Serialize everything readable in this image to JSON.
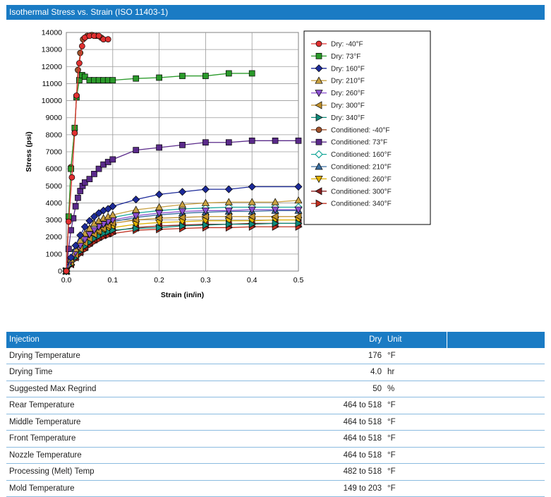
{
  "header": {
    "title": "Isothermal Stress vs. Strain (ISO 11403-1)"
  },
  "chart_data": {
    "type": "line",
    "xlabel": "Strain (in/in)",
    "ylabel": "Stress (psi)",
    "xlim": [
      0,
      0.5
    ],
    "ylim": [
      0,
      14000
    ],
    "xticks": [
      "0.0",
      "0.1",
      "0.2",
      "0.3",
      "0.4",
      "0.5"
    ],
    "yticks": [
      "0",
      "1000",
      "2000",
      "3000",
      "4000",
      "5000",
      "6000",
      "7000",
      "8000",
      "9000",
      "10000",
      "11000",
      "12000",
      "13000",
      "14000"
    ],
    "grid": true,
    "legend_position": "right",
    "series": [
      {
        "name": "Dry: -40°F",
        "color": "#e03030",
        "marker": "circle",
        "points": [
          [
            0,
            0
          ],
          [
            0.005,
            2900
          ],
          [
            0.012,
            5500
          ],
          [
            0.018,
            8100
          ],
          [
            0.022,
            10300
          ],
          [
            0.028,
            12200
          ],
          [
            0.034,
            13200
          ],
          [
            0.04,
            13700
          ],
          [
            0.05,
            13800
          ],
          [
            0.06,
            13800
          ],
          [
            0.07,
            13800
          ],
          [
            0.08,
            13600
          ],
          [
            0.09,
            13600
          ]
        ]
      },
      {
        "name": "Dry: 73°F",
        "color": "#2a9a2a",
        "marker": "square",
        "points": [
          [
            0,
            0
          ],
          [
            0.005,
            3200
          ],
          [
            0.01,
            6000
          ],
          [
            0.018,
            8400
          ],
          [
            0.022,
            10200
          ],
          [
            0.028,
            11200
          ],
          [
            0.034,
            11500
          ],
          [
            0.04,
            11400
          ],
          [
            0.05,
            11200
          ],
          [
            0.06,
            11200
          ],
          [
            0.07,
            11200
          ],
          [
            0.08,
            11200
          ],
          [
            0.09,
            11200
          ],
          [
            0.1,
            11200
          ],
          [
            0.15,
            11300
          ],
          [
            0.2,
            11350
          ],
          [
            0.25,
            11450
          ],
          [
            0.3,
            11450
          ],
          [
            0.35,
            11600
          ],
          [
            0.4,
            11600
          ]
        ]
      },
      {
        "name": "Dry: 160°F",
        "color": "#1c2a99",
        "marker": "diamond",
        "points": [
          [
            0,
            0
          ],
          [
            0.01,
            800
          ],
          [
            0.02,
            1500
          ],
          [
            0.03,
            2100
          ],
          [
            0.04,
            2600
          ],
          [
            0.05,
            2950
          ],
          [
            0.06,
            3200
          ],
          [
            0.07,
            3400
          ],
          [
            0.08,
            3550
          ],
          [
            0.09,
            3650
          ],
          [
            0.1,
            3800
          ],
          [
            0.15,
            4200
          ],
          [
            0.2,
            4500
          ],
          [
            0.25,
            4650
          ],
          [
            0.3,
            4800
          ],
          [
            0.35,
            4800
          ],
          [
            0.4,
            4950
          ],
          [
            0.5,
            4950
          ]
        ]
      },
      {
        "name": "Dry: 210°F",
        "color": "#c8a040",
        "marker": "triangle-up",
        "points": [
          [
            0,
            0
          ],
          [
            0.01,
            700
          ],
          [
            0.02,
            1300
          ],
          [
            0.03,
            1800
          ],
          [
            0.04,
            2200
          ],
          [
            0.05,
            2500
          ],
          [
            0.06,
            2800
          ],
          [
            0.07,
            2950
          ],
          [
            0.08,
            3100
          ],
          [
            0.09,
            3200
          ],
          [
            0.1,
            3300
          ],
          [
            0.15,
            3600
          ],
          [
            0.2,
            3750
          ],
          [
            0.25,
            3900
          ],
          [
            0.3,
            4000
          ],
          [
            0.35,
            4050
          ],
          [
            0.4,
            4050
          ],
          [
            0.45,
            4050
          ],
          [
            0.5,
            4150
          ]
        ]
      },
      {
        "name": "Dry: 260°F",
        "color": "#8a4fd0",
        "marker": "triangle-down",
        "points": [
          [
            0,
            0
          ],
          [
            0.01,
            600
          ],
          [
            0.02,
            1100
          ],
          [
            0.03,
            1500
          ],
          [
            0.04,
            1850
          ],
          [
            0.05,
            2150
          ],
          [
            0.06,
            2400
          ],
          [
            0.07,
            2600
          ],
          [
            0.08,
            2750
          ],
          [
            0.09,
            2900
          ],
          [
            0.1,
            3000
          ],
          [
            0.15,
            3250
          ],
          [
            0.2,
            3400
          ],
          [
            0.25,
            3500
          ],
          [
            0.3,
            3550
          ],
          [
            0.35,
            3550
          ],
          [
            0.4,
            3600
          ],
          [
            0.45,
            3600
          ],
          [
            0.5,
            3600
          ]
        ]
      },
      {
        "name": "Dry: 300°F",
        "color": "#c0902c",
        "marker": "triangle-left",
        "points": [
          [
            0,
            0
          ],
          [
            0.01,
            500
          ],
          [
            0.02,
            950
          ],
          [
            0.03,
            1300
          ],
          [
            0.04,
            1650
          ],
          [
            0.05,
            1900
          ],
          [
            0.06,
            2150
          ],
          [
            0.07,
            2350
          ],
          [
            0.08,
            2500
          ],
          [
            0.09,
            2650
          ],
          [
            0.1,
            2800
          ],
          [
            0.15,
            3000
          ],
          [
            0.2,
            3100
          ],
          [
            0.25,
            3150
          ],
          [
            0.3,
            3200
          ],
          [
            0.35,
            3200
          ],
          [
            0.4,
            3200
          ],
          [
            0.45,
            3200
          ],
          [
            0.5,
            3200
          ]
        ]
      },
      {
        "name": "Dry: 340°F",
        "color": "#0f8a7a",
        "marker": "triangle-right",
        "points": [
          [
            0,
            0
          ],
          [
            0.01,
            400
          ],
          [
            0.02,
            800
          ],
          [
            0.03,
            1150
          ],
          [
            0.04,
            1450
          ],
          [
            0.05,
            1700
          ],
          [
            0.06,
            1900
          ],
          [
            0.07,
            2050
          ],
          [
            0.08,
            2200
          ],
          [
            0.09,
            2300
          ],
          [
            0.1,
            2400
          ],
          [
            0.15,
            2500
          ],
          [
            0.2,
            2550
          ],
          [
            0.25,
            2650
          ],
          [
            0.3,
            2700
          ],
          [
            0.35,
            2750
          ],
          [
            0.4,
            2750
          ],
          [
            0.45,
            2800
          ],
          [
            0.5,
            2800
          ]
        ]
      },
      {
        "name": "Conditioned: -40°F",
        "color": "#a0522d",
        "marker": "circle",
        "points": [
          [
            0,
            0
          ],
          [
            0.005,
            3100
          ],
          [
            0.01,
            6100
          ],
          [
            0.018,
            8300
          ],
          [
            0.025,
            11800
          ],
          [
            0.03,
            12800
          ],
          [
            0.036,
            13600
          ],
          [
            0.045,
            13800
          ],
          [
            0.055,
            13850
          ],
          [
            0.065,
            13800
          ],
          [
            0.075,
            13700
          ]
        ]
      },
      {
        "name": "Conditioned: 73°F",
        "color": "#5a2a8a",
        "marker": "square",
        "points": [
          [
            0,
            0
          ],
          [
            0.005,
            1300
          ],
          [
            0.01,
            2400
          ],
          [
            0.015,
            3100
          ],
          [
            0.02,
            3800
          ],
          [
            0.025,
            4300
          ],
          [
            0.03,
            4700
          ],
          [
            0.035,
            5000
          ],
          [
            0.04,
            5200
          ],
          [
            0.05,
            5400
          ],
          [
            0.06,
            5700
          ],
          [
            0.07,
            6000
          ],
          [
            0.08,
            6250
          ],
          [
            0.09,
            6400
          ],
          [
            0.1,
            6550
          ],
          [
            0.15,
            7100
          ],
          [
            0.2,
            7250
          ],
          [
            0.25,
            7400
          ],
          [
            0.3,
            7550
          ],
          [
            0.35,
            7550
          ],
          [
            0.4,
            7650
          ],
          [
            0.45,
            7650
          ],
          [
            0.5,
            7650
          ]
        ]
      },
      {
        "name": "Conditioned: 160°F",
        "color": "#1aa89a",
        "marker": "diamond-open",
        "points": [
          [
            0,
            0
          ],
          [
            0.01,
            600
          ],
          [
            0.02,
            1200
          ],
          [
            0.03,
            1650
          ],
          [
            0.04,
            2000
          ],
          [
            0.05,
            2300
          ],
          [
            0.06,
            2550
          ],
          [
            0.07,
            2750
          ],
          [
            0.08,
            2900
          ],
          [
            0.09,
            3050
          ],
          [
            0.1,
            3150
          ],
          [
            0.15,
            3400
          ],
          [
            0.2,
            3550
          ],
          [
            0.25,
            3650
          ],
          [
            0.3,
            3700
          ],
          [
            0.35,
            3750
          ],
          [
            0.4,
            3750
          ],
          [
            0.45,
            3750
          ],
          [
            0.5,
            3750
          ]
        ]
      },
      {
        "name": "Conditioned: 210°F",
        "color": "#3a6ea0",
        "marker": "triangle-up",
        "points": [
          [
            0,
            0
          ],
          [
            0.01,
            500
          ],
          [
            0.02,
            1000
          ],
          [
            0.03,
            1400
          ],
          [
            0.04,
            1750
          ],
          [
            0.05,
            2050
          ],
          [
            0.06,
            2300
          ],
          [
            0.07,
            2500
          ],
          [
            0.08,
            2650
          ],
          [
            0.09,
            2800
          ],
          [
            0.1,
            2900
          ],
          [
            0.15,
            3150
          ],
          [
            0.2,
            3300
          ],
          [
            0.25,
            3400
          ],
          [
            0.3,
            3450
          ],
          [
            0.35,
            3500
          ],
          [
            0.4,
            3500
          ],
          [
            0.45,
            3550
          ],
          [
            0.5,
            3550
          ]
        ]
      },
      {
        "name": "Conditioned: 260°F",
        "color": "#e0b000",
        "marker": "triangle-down",
        "points": [
          [
            0,
            0
          ],
          [
            0.01,
            450
          ],
          [
            0.02,
            900
          ],
          [
            0.03,
            1250
          ],
          [
            0.04,
            1550
          ],
          [
            0.05,
            1800
          ],
          [
            0.06,
            2050
          ],
          [
            0.07,
            2200
          ],
          [
            0.08,
            2350
          ],
          [
            0.09,
            2450
          ],
          [
            0.1,
            2550
          ],
          [
            0.15,
            2750
          ],
          [
            0.2,
            2850
          ],
          [
            0.25,
            2900
          ],
          [
            0.3,
            2950
          ],
          [
            0.35,
            2950
          ],
          [
            0.4,
            2950
          ],
          [
            0.45,
            3000
          ],
          [
            0.5,
            3000
          ]
        ]
      },
      {
        "name": "Conditioned: 300°F",
        "color": "#8a2020",
        "marker": "triangle-left",
        "points": [
          [
            0,
            0
          ],
          [
            0.01,
            400
          ],
          [
            0.02,
            800
          ],
          [
            0.03,
            1100
          ],
          [
            0.04,
            1400
          ],
          [
            0.05,
            1650
          ],
          [
            0.06,
            1850
          ],
          [
            0.07,
            2000
          ],
          [
            0.08,
            2150
          ],
          [
            0.09,
            2250
          ],
          [
            0.1,
            2350
          ],
          [
            0.15,
            2550
          ],
          [
            0.2,
            2650
          ],
          [
            0.25,
            2700
          ],
          [
            0.3,
            2750
          ],
          [
            0.35,
            2750
          ],
          [
            0.4,
            2800
          ],
          [
            0.45,
            2800
          ],
          [
            0.5,
            2800
          ]
        ]
      },
      {
        "name": "Conditioned: 340°F",
        "color": "#c03020",
        "marker": "triangle-right",
        "points": [
          [
            0,
            0
          ],
          [
            0.01,
            350
          ],
          [
            0.02,
            700
          ],
          [
            0.03,
            1000
          ],
          [
            0.04,
            1250
          ],
          [
            0.05,
            1500
          ],
          [
            0.06,
            1700
          ],
          [
            0.07,
            1850
          ],
          [
            0.08,
            2000
          ],
          [
            0.09,
            2100
          ],
          [
            0.1,
            2200
          ],
          [
            0.15,
            2400
          ],
          [
            0.2,
            2450
          ],
          [
            0.25,
            2500
          ],
          [
            0.3,
            2550
          ],
          [
            0.35,
            2550
          ],
          [
            0.4,
            2600
          ],
          [
            0.45,
            2600
          ],
          [
            0.5,
            2600
          ]
        ]
      }
    ]
  },
  "table": {
    "headers": [
      "Injection",
      "Dry",
      "Unit"
    ],
    "rows": [
      {
        "name": "Drying Temperature",
        "value": "176",
        "unit": "°F"
      },
      {
        "name": "Drying Time",
        "value": "4.0",
        "unit": "hr"
      },
      {
        "name": "Suggested Max Regrind",
        "value": "50",
        "unit": "%"
      },
      {
        "name": "Rear Temperature",
        "value": "464 to 518",
        "unit": "°F"
      },
      {
        "name": "Middle Temperature",
        "value": "464 to 518",
        "unit": "°F"
      },
      {
        "name": "Front Temperature",
        "value": "464 to 518",
        "unit": "°F"
      },
      {
        "name": "Nozzle Temperature",
        "value": "464 to 518",
        "unit": "°F"
      },
      {
        "name": "Processing (Melt) Temp",
        "value": "482 to 518",
        "unit": "°F"
      },
      {
        "name": "Mold Temperature",
        "value": "149 to 203",
        "unit": "°F"
      }
    ]
  }
}
